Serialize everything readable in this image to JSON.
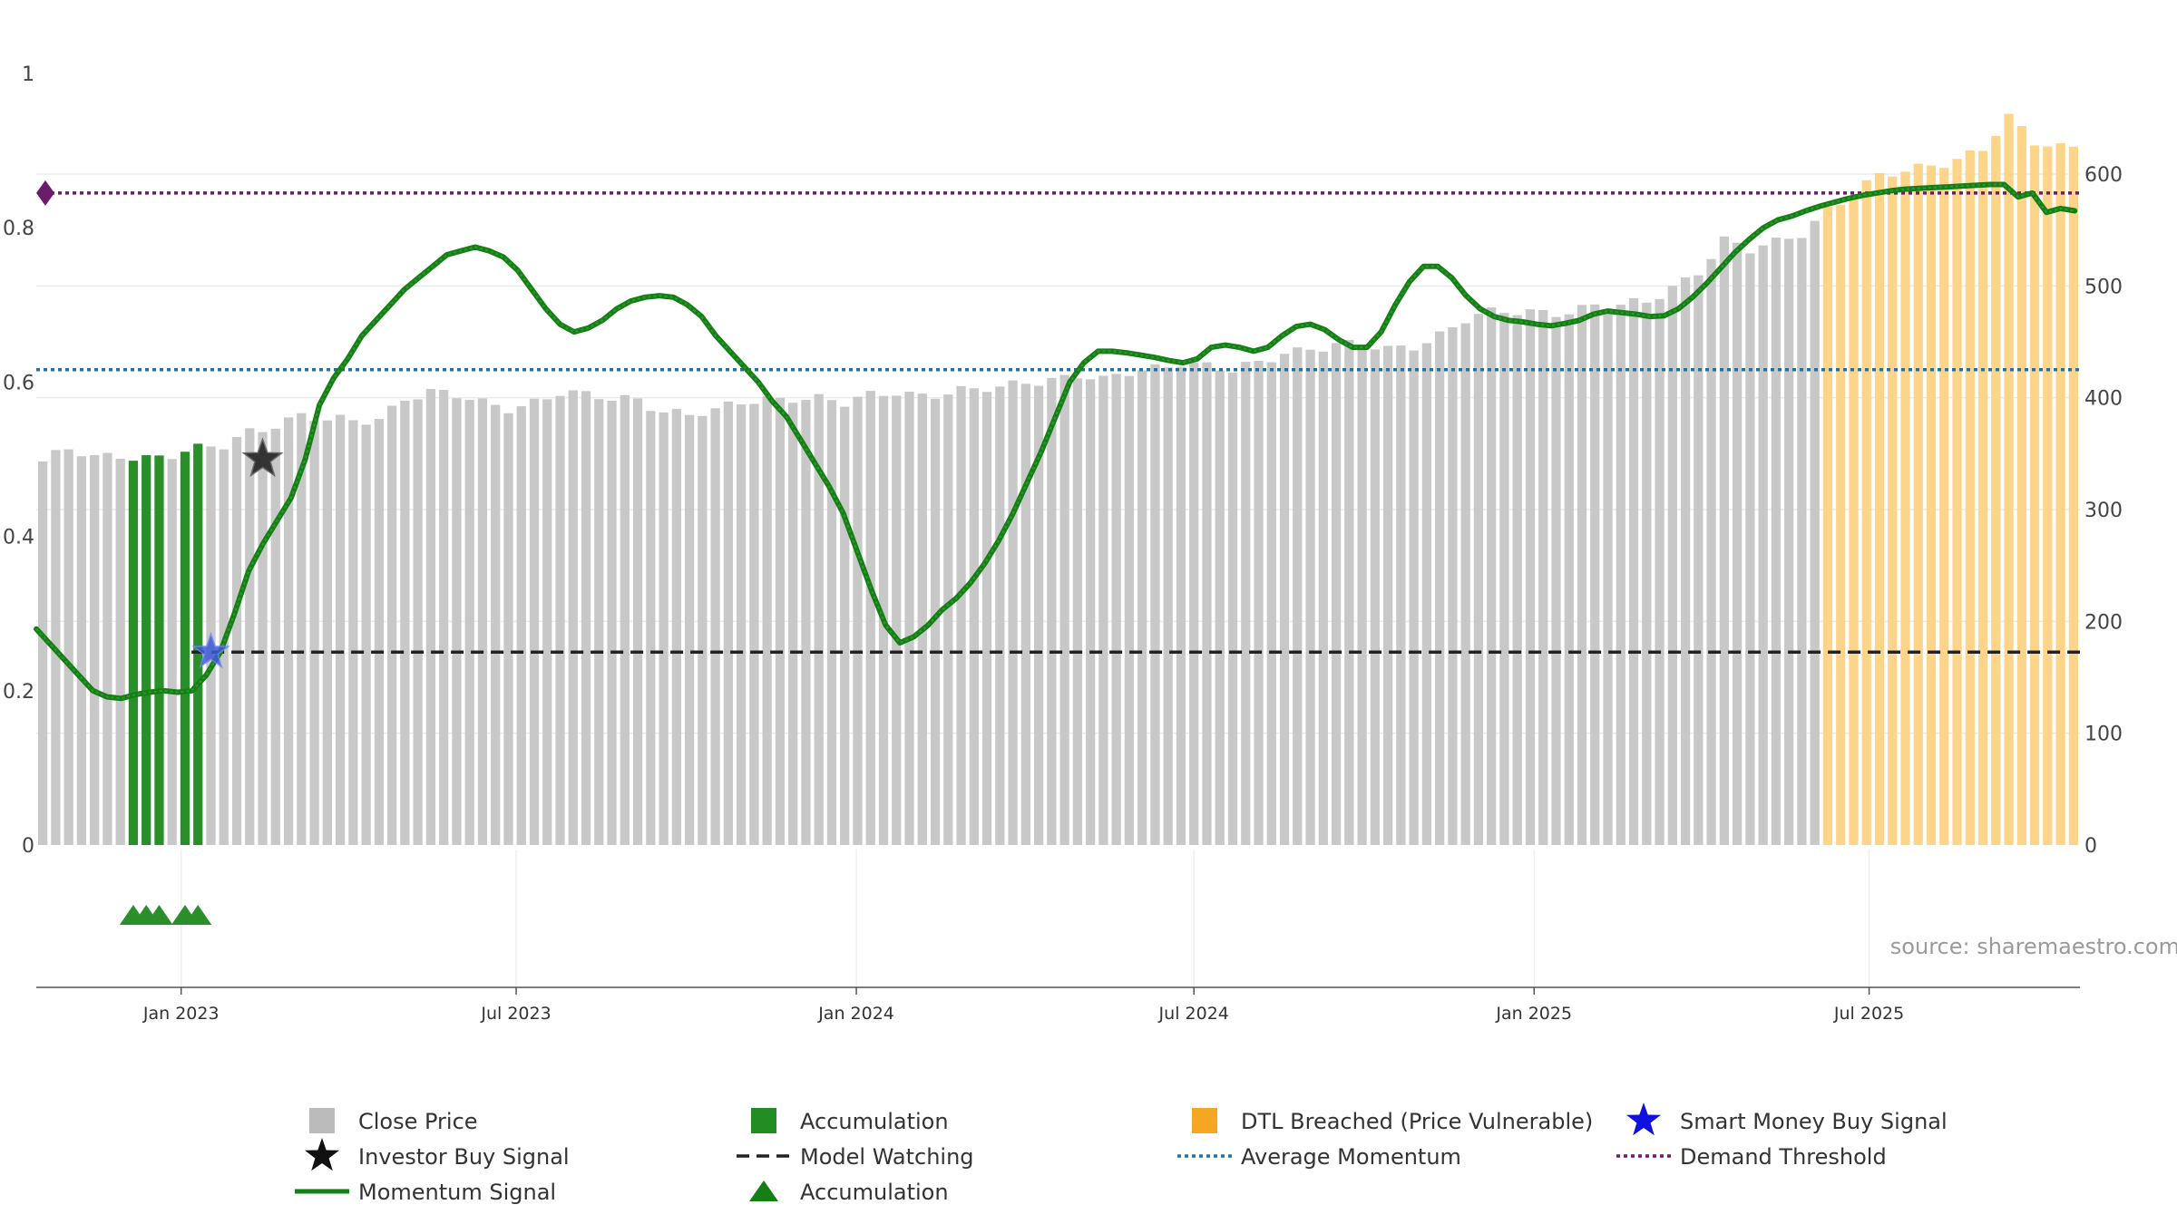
{
  "chart_data": {
    "type": "bar+line",
    "title": "",
    "source": "source: sharemaestro.com",
    "x_dates": [
      "Jan 2023",
      "Jul 2023",
      "Jan 2024",
      "Jul 2024",
      "Jan 2025",
      "Jul 2025"
    ],
    "x_date_weeks": [
      10.7,
      36.6,
      62.9,
      89.0,
      115.3,
      141.2
    ],
    "left_axis": {
      "ticks": [
        "0",
        "0.2",
        "0.4",
        "0.6",
        "0.8",
        "1"
      ],
      "values": [
        0,
        0.2,
        0.4,
        0.6,
        0.8,
        1
      ],
      "ylim": [
        0,
        1
      ]
    },
    "right_axis": {
      "ticks": [
        "0",
        "100",
        "200",
        "300",
        "400",
        "500",
        "600"
      ],
      "values": [
        0,
        100,
        200,
        300,
        400,
        500,
        600
      ],
      "ylim": [
        0,
        690
      ]
    },
    "bar_count": 158,
    "close_price_anchors": [
      [
        0,
        343
      ],
      [
        2,
        352
      ],
      [
        4,
        345
      ],
      [
        6,
        350
      ],
      [
        8,
        348
      ],
      [
        10,
        349
      ],
      [
        12,
        352
      ],
      [
        14,
        356
      ],
      [
        16,
        371
      ],
      [
        18,
        378
      ],
      [
        20,
        384
      ],
      [
        22,
        378
      ],
      [
        24,
        378
      ],
      [
        26,
        382
      ],
      [
        28,
        402
      ],
      [
        30,
        405
      ],
      [
        32,
        400
      ],
      [
        34,
        394
      ],
      [
        36,
        392
      ],
      [
        38,
        398
      ],
      [
        40,
        405
      ],
      [
        42,
        400
      ],
      [
        44,
        398
      ],
      [
        46,
        400
      ],
      [
        48,
        390
      ],
      [
        50,
        385
      ],
      [
        52,
        386
      ],
      [
        54,
        395
      ],
      [
        56,
        400
      ],
      [
        58,
        402
      ],
      [
        60,
        399
      ],
      [
        62,
        393
      ],
      [
        64,
        401
      ],
      [
        66,
        407
      ],
      [
        68,
        404
      ],
      [
        70,
        404
      ],
      [
        72,
        405
      ],
      [
        74,
        408
      ],
      [
        76,
        416
      ],
      [
        78,
        418
      ],
      [
        80,
        420
      ],
      [
        82,
        413
      ],
      [
        84,
        422
      ],
      [
        86,
        428
      ],
      [
        88,
        434
      ],
      [
        90,
        428
      ],
      [
        92,
        422
      ],
      [
        94,
        430
      ],
      [
        96,
        442
      ],
      [
        98,
        446
      ],
      [
        100,
        447
      ],
      [
        102,
        445
      ],
      [
        104,
        442
      ],
      [
        106,
        448
      ],
      [
        108,
        458
      ],
      [
        110,
        470
      ],
      [
        112,
        474
      ],
      [
        114,
        476
      ],
      [
        116,
        478
      ],
      [
        118,
        479
      ],
      [
        120,
        482
      ],
      [
        122,
        480
      ],
      [
        124,
        485
      ],
      [
        126,
        500
      ],
      [
        128,
        515
      ],
      [
        130,
        540
      ],
      [
        132,
        530
      ],
      [
        134,
        538
      ],
      [
        136,
        549
      ],
      [
        138,
        570
      ],
      [
        140,
        582
      ],
      [
        142,
        596
      ],
      [
        144,
        602
      ],
      [
        146,
        610
      ],
      [
        148,
        615
      ],
      [
        150,
        622
      ],
      [
        152,
        648
      ],
      [
        154,
        628
      ],
      [
        156,
        626
      ],
      [
        157,
        627
      ]
    ],
    "accumulation_bars": [
      7,
      8,
      9,
      11,
      12
    ],
    "dtl_breached_start": 138,
    "momentum_signal": [
      [
        0,
        0.28
      ],
      [
        1,
        0.26
      ],
      [
        2,
        0.24
      ],
      [
        3,
        0.22
      ],
      [
        4,
        0.2
      ],
      [
        5,
        0.192
      ],
      [
        6,
        0.19
      ],
      [
        7,
        0.195
      ],
      [
        8,
        0.198
      ],
      [
        9,
        0.2
      ],
      [
        10,
        0.198
      ],
      [
        11,
        0.2
      ],
      [
        12,
        0.22
      ],
      [
        13,
        0.25
      ],
      [
        14,
        0.3
      ],
      [
        15,
        0.355
      ],
      [
        16,
        0.39
      ],
      [
        17,
        0.42
      ],
      [
        18,
        0.45
      ],
      [
        19,
        0.5
      ],
      [
        20,
        0.57
      ],
      [
        21,
        0.605
      ],
      [
        22,
        0.63
      ],
      [
        23,
        0.66
      ],
      [
        24,
        0.68
      ],
      [
        25,
        0.7
      ],
      [
        26,
        0.72
      ],
      [
        27,
        0.735
      ],
      [
        28,
        0.75
      ],
      [
        29,
        0.765
      ],
      [
        30,
        0.77
      ],
      [
        31,
        0.775
      ],
      [
        32,
        0.77
      ],
      [
        33,
        0.762
      ],
      [
        34,
        0.745
      ],
      [
        35,
        0.72
      ],
      [
        36,
        0.695
      ],
      [
        37,
        0.675
      ],
      [
        38,
        0.665
      ],
      [
        39,
        0.67
      ],
      [
        40,
        0.68
      ],
      [
        41,
        0.695
      ],
      [
        42,
        0.705
      ],
      [
        43,
        0.71
      ],
      [
        44,
        0.712
      ],
      [
        45,
        0.71
      ],
      [
        46,
        0.7
      ],
      [
        47,
        0.685
      ],
      [
        48,
        0.66
      ],
      [
        49,
        0.64
      ],
      [
        50,
        0.62
      ],
      [
        51,
        0.6
      ],
      [
        52,
        0.575
      ],
      [
        53,
        0.555
      ],
      [
        54,
        0.525
      ],
      [
        55,
        0.495
      ],
      [
        56,
        0.465
      ],
      [
        57,
        0.43
      ],
      [
        58,
        0.38
      ],
      [
        59,
        0.33
      ],
      [
        60,
        0.285
      ],
      [
        61,
        0.262
      ],
      [
        62,
        0.27
      ],
      [
        63,
        0.285
      ],
      [
        64,
        0.305
      ],
      [
        65,
        0.32
      ],
      [
        66,
        0.34
      ],
      [
        67,
        0.365
      ],
      [
        68,
        0.395
      ],
      [
        69,
        0.43
      ],
      [
        70,
        0.47
      ],
      [
        71,
        0.51
      ],
      [
        72,
        0.555
      ],
      [
        73,
        0.6
      ],
      [
        74,
        0.625
      ],
      [
        75,
        0.64
      ],
      [
        76,
        0.64
      ],
      [
        77,
        0.638
      ],
      [
        78,
        0.635
      ],
      [
        79,
        0.632
      ],
      [
        80,
        0.628
      ],
      [
        81,
        0.625
      ],
      [
        82,
        0.63
      ],
      [
        83,
        0.645
      ],
      [
        84,
        0.648
      ],
      [
        85,
        0.645
      ],
      [
        86,
        0.64
      ],
      [
        87,
        0.645
      ],
      [
        88,
        0.66
      ],
      [
        89,
        0.672
      ],
      [
        90,
        0.675
      ],
      [
        91,
        0.668
      ],
      [
        92,
        0.655
      ],
      [
        93,
        0.645
      ],
      [
        94,
        0.645
      ],
      [
        95,
        0.665
      ],
      [
        96,
        0.7
      ],
      [
        97,
        0.73
      ],
      [
        98,
        0.75
      ],
      [
        99,
        0.75
      ],
      [
        100,
        0.735
      ],
      [
        101,
        0.712
      ],
      [
        102,
        0.695
      ],
      [
        103,
        0.685
      ],
      [
        104,
        0.68
      ],
      [
        105,
        0.678
      ],
      [
        106,
        0.675
      ],
      [
        107,
        0.673
      ],
      [
        108,
        0.676
      ],
      [
        109,
        0.68
      ],
      [
        110,
        0.688
      ],
      [
        111,
        0.692
      ],
      [
        112,
        0.69
      ],
      [
        113,
        0.688
      ],
      [
        114,
        0.685
      ],
      [
        115,
        0.686
      ],
      [
        116,
        0.695
      ],
      [
        117,
        0.71
      ],
      [
        118,
        0.728
      ],
      [
        119,
        0.748
      ],
      [
        120,
        0.768
      ],
      [
        121,
        0.785
      ],
      [
        122,
        0.8
      ],
      [
        123,
        0.81
      ],
      [
        124,
        0.815
      ],
      [
        125,
        0.822
      ],
      [
        126,
        0.828
      ],
      [
        127,
        0.833
      ],
      [
        128,
        0.838
      ],
      [
        129,
        0.842
      ],
      [
        130,
        0.845
      ],
      [
        131,
        0.848
      ],
      [
        132,
        0.85
      ],
      [
        133,
        0.851
      ],
      [
        134,
        0.852
      ],
      [
        135,
        0.853
      ],
      [
        136,
        0.854
      ],
      [
        137,
        0.855
      ],
      [
        138,
        0.856
      ],
      [
        139,
        0.856
      ],
      [
        140,
        0.84
      ],
      [
        141,
        0.845
      ],
      [
        142,
        0.82
      ],
      [
        143,
        0.825
      ],
      [
        144,
        0.822
      ]
    ],
    "momentum_x_end": 157.6,
    "thresholds": {
      "demand_threshold": 0.845,
      "average_momentum": 0.616,
      "model_watching": 0.25
    },
    "model_watching_start_week": 11.5,
    "investor_buy_signal": {
      "week": 17,
      "value": 0.5
    },
    "smart_money_buy_signal": {
      "week": 13,
      "value": 0.25
    },
    "demand_marker": {
      "week": 0.3,
      "value": 0.845
    },
    "accumulation_markers_weeks": [
      7,
      8,
      9,
      11,
      12
    ],
    "legend": [
      {
        "label": "Close Price",
        "type": "square",
        "color": "#bbbbbb"
      },
      {
        "label": "Accumulation",
        "type": "square",
        "color": "#228b22"
      },
      {
        "label": "DTL Breached (Price Vulnerable)",
        "type": "square",
        "color": "#f5a623"
      },
      {
        "label": "Smart Money Buy Signal",
        "type": "star",
        "color": "#1010e0"
      },
      {
        "label": "Investor Buy Signal",
        "type": "star",
        "color": "#111111"
      },
      {
        "label": "Model Watching",
        "type": "dash",
        "color": "#222222"
      },
      {
        "label": "Average Momentum",
        "type": "dot",
        "color": "#2a6f97"
      },
      {
        "label": "Demand Threshold",
        "type": "dot",
        "color": "#6a1b6a"
      },
      {
        "label": "Momentum Signal",
        "type": "line",
        "color": "#138013"
      },
      {
        "label": "Accumulation",
        "type": "triangle",
        "color": "#138013"
      }
    ],
    "colors": {
      "close_price": "#c8c8c8",
      "accumulation": "#2a8f2a",
      "dtl_breached": "#fdd58a",
      "momentum": "#138013",
      "momentum_overlay": "#55a055",
      "demand_threshold": "#6a1b6a",
      "average_momentum": "#2a6f97",
      "model_watching": "#222222",
      "smart_money": "#1010e0",
      "investor": "#111111",
      "grid": "#e6e6e6"
    }
  }
}
